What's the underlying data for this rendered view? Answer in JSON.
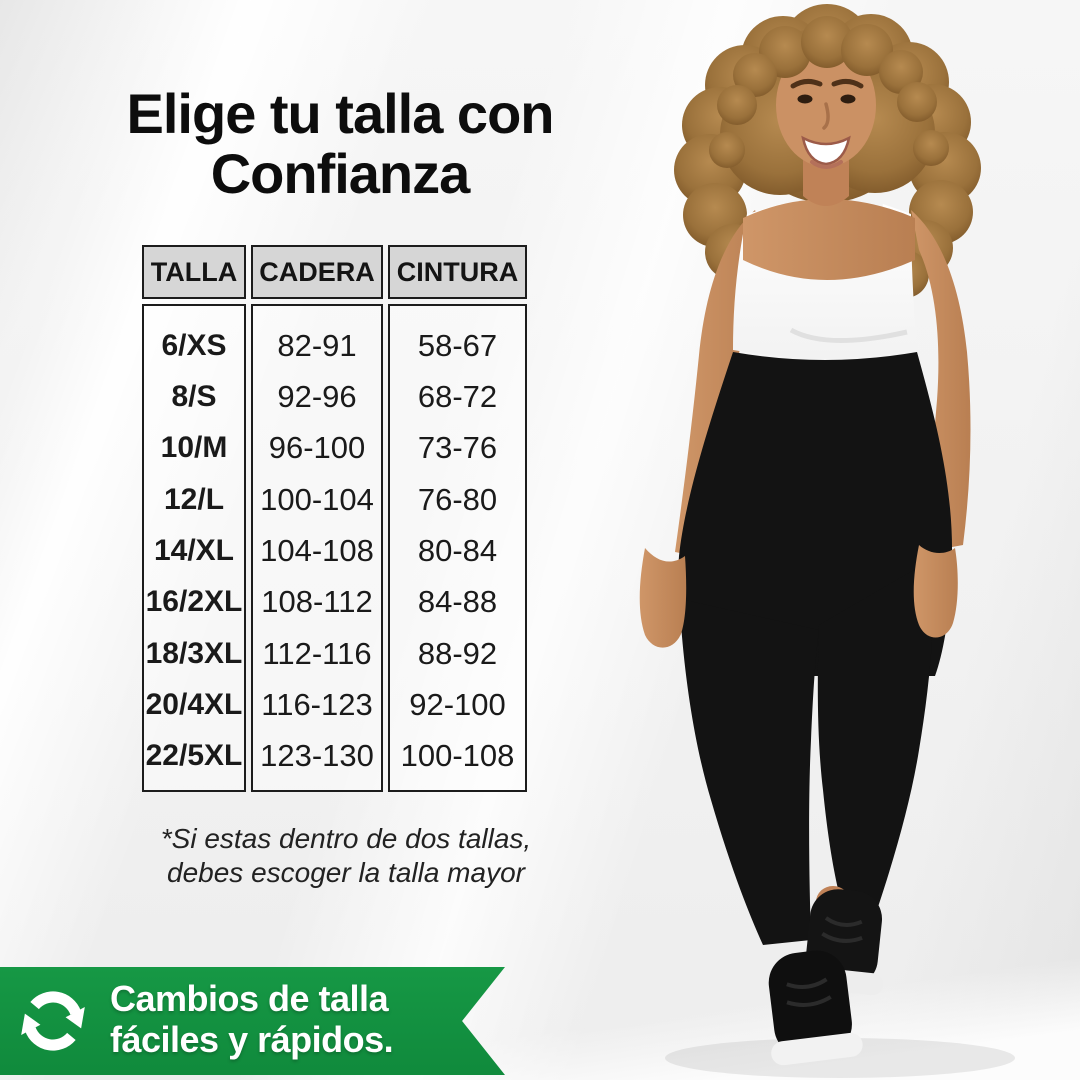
{
  "title": {
    "line1": "Elige tu talla con",
    "line2": "Confianza"
  },
  "size_table": {
    "headers": [
      "TALLA",
      "CADERA",
      "CINTURA"
    ],
    "rows": [
      [
        "6/XS",
        "82-91",
        "58-67"
      ],
      [
        "8/S",
        "92-96",
        "68-72"
      ],
      [
        "10/M",
        "96-100",
        "73-76"
      ],
      [
        "12/L",
        "100-104",
        "76-80"
      ],
      [
        "14/XL",
        "104-108",
        "80-84"
      ],
      [
        "16/2XL",
        "108-112",
        "84-88"
      ],
      [
        "18/3XL",
        "112-116",
        "88-92"
      ],
      [
        "20/4XL",
        "116-123",
        "92-100"
      ],
      [
        "22/5XL",
        "123-130",
        "100-108"
      ]
    ]
  },
  "footnote": {
    "line1": "*Si estas dentro de dos tallas,",
    "line2": "debes escoger la talla mayor"
  },
  "banner": {
    "line1": "Cambios de talla",
    "line2": "fáciles y rápidos.",
    "icon": "exchange-arrows-icon",
    "color": "#169845"
  },
  "colors": {
    "banner_green": "#169845",
    "table_header_gray": "#d6d6d6",
    "text_black": "#0d0d0d"
  }
}
